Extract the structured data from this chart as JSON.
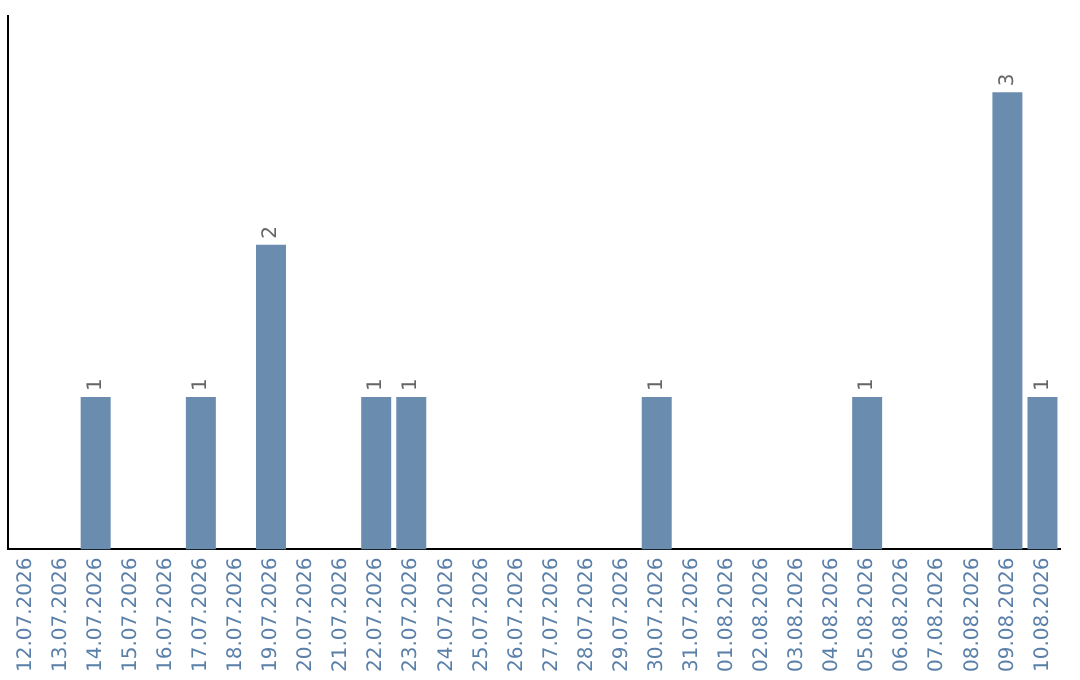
{
  "chart_data": {
    "type": "bar",
    "categories": [
      "12.07.2026",
      "13.07.2026",
      "14.07.2026",
      "15.07.2026",
      "16.07.2026",
      "17.07.2026",
      "18.07.2026",
      "19.07.2026",
      "20.07.2026",
      "21.07.2026",
      "22.07.2026",
      "23.07.2026",
      "24.07.2026",
      "25.07.2026",
      "26.07.2026",
      "27.07.2026",
      "28.07.2026",
      "29.07.2026",
      "30.07.2026",
      "31.07.2026",
      "01.08.2026",
      "02.08.2026",
      "03.08.2026",
      "04.08.2026",
      "05.08.2026",
      "06.08.2026",
      "07.08.2026",
      "08.08.2026",
      "09.08.2026",
      "10.08.2026"
    ],
    "values": [
      null,
      null,
      1,
      null,
      null,
      1,
      null,
      2,
      null,
      null,
      1,
      1,
      null,
      null,
      null,
      null,
      null,
      null,
      1,
      null,
      null,
      null,
      null,
      null,
      1,
      null,
      null,
      null,
      3,
      1
    ],
    "color": "#6a8caf",
    "data_labels": true,
    "grid": false,
    "legend": false,
    "tick_labels": "x"
  }
}
